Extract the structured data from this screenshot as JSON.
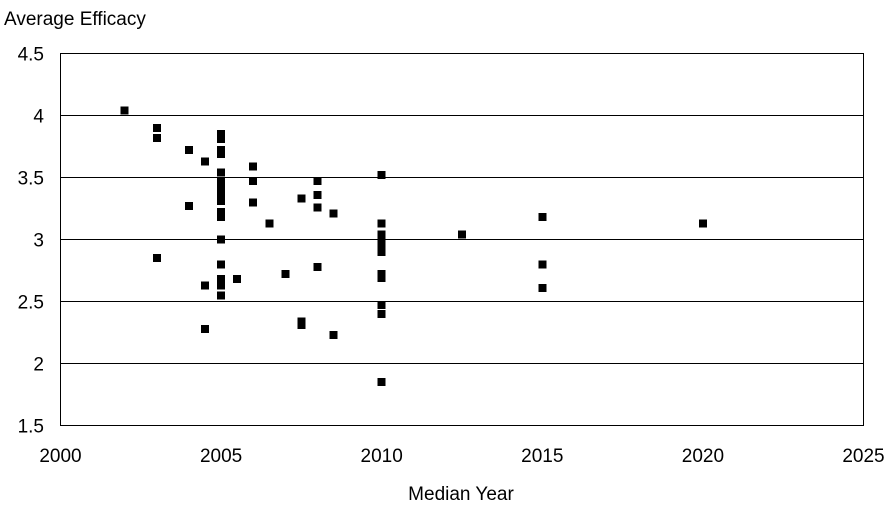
{
  "chart_data": {
    "type": "scatter",
    "title": "",
    "xlabel": "Median Year",
    "ylabel": "Average Efficacy",
    "xlim": [
      2000,
      2025
    ],
    "ylim": [
      1.5,
      4.5
    ],
    "x_ticks": [
      "2000",
      "2005",
      "2010",
      "2015",
      "2020",
      "2025"
    ],
    "y_ticks": [
      "1.5",
      "2",
      "2.5",
      "3",
      "3.5",
      "4",
      "4.5"
    ],
    "grid": "horizontal",
    "marker": "square",
    "marker_color": "#000000",
    "series": [
      {
        "points": [
          [
            2002,
            4.04
          ],
          [
            2003,
            3.9
          ],
          [
            2003,
            3.82
          ],
          [
            2003,
            2.85
          ],
          [
            2004,
            3.72
          ],
          [
            2004,
            3.27
          ],
          [
            2004.5,
            3.63
          ],
          [
            2004.5,
            2.63
          ],
          [
            2004.5,
            2.28
          ],
          [
            2005,
            3.85
          ],
          [
            2005,
            3.81
          ],
          [
            2005,
            3.72
          ],
          [
            2005,
            3.69
          ],
          [
            2005,
            3.54
          ],
          [
            2005,
            3.47
          ],
          [
            2005,
            3.42
          ],
          [
            2005,
            3.38
          ],
          [
            2005,
            3.35
          ],
          [
            2005,
            3.31
          ],
          [
            2005,
            3.22
          ],
          [
            2005,
            3.18
          ],
          [
            2005,
            3.0
          ],
          [
            2005,
            2.8
          ],
          [
            2005,
            2.68
          ],
          [
            2005,
            2.63
          ],
          [
            2005,
            2.55
          ],
          [
            2005.5,
            2.68
          ],
          [
            2006,
            3.59
          ],
          [
            2006,
            3.47
          ],
          [
            2006,
            3.3
          ],
          [
            2006.5,
            3.13
          ],
          [
            2007,
            2.72
          ],
          [
            2007.5,
            3.33
          ],
          [
            2007.5,
            2.34
          ],
          [
            2007.5,
            2.31
          ],
          [
            2008,
            3.47
          ],
          [
            2008,
            3.36
          ],
          [
            2008,
            3.26
          ],
          [
            2008,
            2.78
          ],
          [
            2008.5,
            3.21
          ],
          [
            2008.5,
            2.23
          ],
          [
            2010,
            3.52
          ],
          [
            2010,
            3.13
          ],
          [
            2010,
            3.04
          ],
          [
            2010,
            3.0
          ],
          [
            2010,
            2.95
          ],
          [
            2010,
            2.9
          ],
          [
            2010,
            2.72
          ],
          [
            2010,
            2.69
          ],
          [
            2010,
            2.47
          ],
          [
            2010,
            2.4
          ],
          [
            2010,
            1.85
          ],
          [
            2012.5,
            3.04
          ],
          [
            2015,
            3.18
          ],
          [
            2015,
            2.8
          ],
          [
            2015,
            2.61
          ],
          [
            2020,
            3.13
          ]
        ]
      }
    ]
  }
}
